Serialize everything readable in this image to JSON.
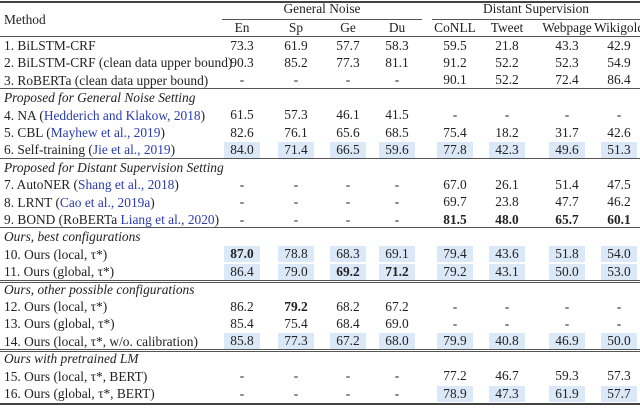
{
  "header": {
    "method_label": "Method",
    "groups": [
      "General Noise",
      "Distant Supervision"
    ],
    "columns": [
      "En",
      "Sp",
      "Ge",
      "Du",
      "CoNLL",
      "Tweet",
      "Webpage",
      "Wikigold"
    ]
  },
  "highlight_color": "#dbe8f8",
  "citation_color": "#2b3bb0",
  "sections": [
    {
      "title": "",
      "rows": [
        {
          "label": "1. BiLSTM-CRF",
          "cite": "",
          "suffix": "",
          "values": [
            "73.3",
            "61.9",
            "57.7",
            "58.3",
            "59.5",
            "21.8",
            "43.3",
            "42.9"
          ],
          "bold": [],
          "highlight": []
        },
        {
          "label": "2. BiLSTM-CRF (clean data upper bound)",
          "cite": "",
          "suffix": "",
          "values": [
            "90.3",
            "85.2",
            "77.3",
            "81.1",
            "91.2",
            "52.2",
            "52.3",
            "54.9"
          ],
          "bold": [],
          "highlight": []
        },
        {
          "label": "3. RoBERTa (clean data upper bound)",
          "cite": "",
          "suffix": "",
          "values": [
            "-",
            "-",
            "-",
            "-",
            "90.1",
            "52.2",
            "72.4",
            "86.4"
          ],
          "bold": [],
          "highlight": []
        }
      ]
    },
    {
      "title": "Proposed for General Noise Setting",
      "rows": [
        {
          "label": "4. NA (",
          "cite": "Hedderich and Klakow, 2018",
          "suffix": ")",
          "values": [
            "61.5",
            "57.3",
            "46.1",
            "41.5",
            "-",
            "-",
            "-",
            "-"
          ],
          "bold": [],
          "highlight": []
        },
        {
          "label": "5. CBL (",
          "cite": "Mayhew et al., 2019",
          "suffix": ")",
          "values": [
            "82.6",
            "76.1",
            "65.6",
            "68.5",
            "75.4",
            "18.2",
            "31.7",
            "42.6"
          ],
          "bold": [],
          "highlight": []
        },
        {
          "label": "6. Self-training (",
          "cite": "Jie et al., 2019",
          "suffix": ")",
          "values": [
            "84.0",
            "71.4",
            "66.5",
            "59.6",
            "77.8",
            "42.3",
            "49.6",
            "51.3"
          ],
          "bold": [],
          "highlight": [
            0,
            1,
            2,
            3,
            4,
            5,
            6,
            7
          ]
        }
      ]
    },
    {
      "title": "Proposed for Distant Supervision Setting",
      "rows": [
        {
          "label": "7. AutoNER (",
          "cite": "Shang et al., 2018",
          "suffix": ")",
          "values": [
            "-",
            "-",
            "-",
            "-",
            "67.0",
            "26.1",
            "51.4",
            "47.5"
          ],
          "bold": [],
          "highlight": []
        },
        {
          "label": "8. LRNT (",
          "cite": "Cao et al., 2019a",
          "suffix": ")",
          "values": [
            "-",
            "-",
            "-",
            "-",
            "69.7",
            "23.8",
            "47.7",
            "46.2"
          ],
          "bold": [],
          "highlight": []
        },
        {
          "label": "9. BOND (RoBERTa ",
          "cite": "Liang et al., 2020",
          "suffix": ")",
          "values": [
            "-",
            "-",
            "-",
            "-",
            "81.5",
            "48.0",
            "65.7",
            "60.1"
          ],
          "bold": [
            4,
            5,
            6,
            7
          ],
          "highlight": []
        }
      ]
    },
    {
      "title": "Ours, best configurations",
      "rows": [
        {
          "label": "10. Ours (local, τ*)",
          "cite": "",
          "suffix": "",
          "values": [
            "87.0",
            "78.8",
            "68.3",
            "69.1",
            "79.4",
            "43.6",
            "51.8",
            "54.0"
          ],
          "bold": [
            0
          ],
          "highlight": [
            0,
            1,
            2,
            3,
            4,
            5,
            6,
            7
          ]
        },
        {
          "label": "11. Ours (global, τ*)",
          "cite": "",
          "suffix": "",
          "values": [
            "86.4",
            "79.0",
            "69.2",
            "71.2",
            "79.2",
            "43.1",
            "50.0",
            "53.0"
          ],
          "bold": [
            2,
            3
          ],
          "highlight": [
            0,
            1,
            2,
            3,
            4,
            5,
            6,
            7
          ]
        }
      ]
    },
    {
      "title": "Ours, other possible configurations",
      "rows": [
        {
          "label": "12. Ours (local, τ*)",
          "cite": "",
          "suffix": "",
          "values": [
            "86.2",
            "79.2",
            "68.2",
            "67.2",
            "-",
            "-",
            "-",
            "-"
          ],
          "bold": [
            1
          ],
          "highlight": []
        },
        {
          "label": "13. Ours (global, τ*)",
          "cite": "",
          "suffix": "",
          "values": [
            "85.4",
            "75.4",
            "68.4",
            "69.0",
            "-",
            "-",
            "-",
            "-"
          ],
          "bold": [],
          "highlight": []
        },
        {
          "label": "14. Ours (local, τ*, w/o. calibration)",
          "cite": "",
          "suffix": "",
          "values": [
            "85.8",
            "77.3",
            "67.2",
            "68.0",
            "79.9",
            "40.8",
            "46.9",
            "50.0"
          ],
          "bold": [],
          "highlight": [
            0,
            1,
            2,
            3,
            4,
            5,
            6,
            7
          ]
        }
      ]
    },
    {
      "title": "Ours with pretrained LM",
      "rows": [
        {
          "label": "15. Ours (local, τ*, BERT)",
          "cite": "",
          "suffix": "",
          "values": [
            "-",
            "-",
            "-",
            "-",
            "77.2",
            "46.7",
            "59.3",
            "57.3"
          ],
          "bold": [],
          "highlight": []
        },
        {
          "label": "16. Ours (global, τ*, BERT)",
          "cite": "",
          "suffix": "",
          "values": [
            "-",
            "-",
            "-",
            "-",
            "78.9",
            "47.3",
            "61.9",
            "57.7"
          ],
          "bold": [],
          "highlight": [
            4,
            5,
            6,
            7
          ]
        }
      ]
    }
  ]
}
